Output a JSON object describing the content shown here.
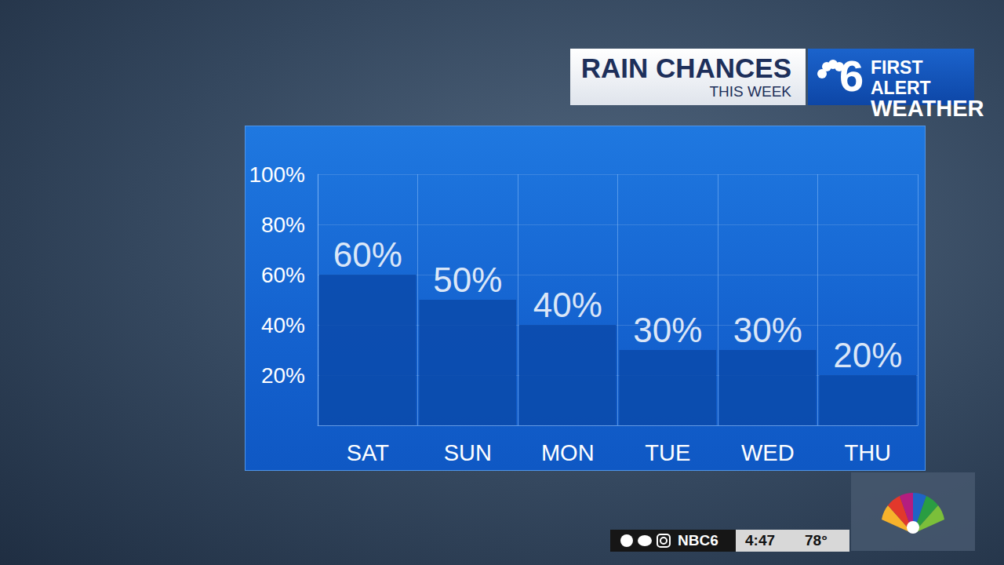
{
  "chart_data": {
    "type": "bar",
    "title": "RAIN CHANCES",
    "subtitle": "THIS WEEK",
    "categories": [
      "SAT",
      "SUN",
      "MON",
      "TUE",
      "WED",
      "THU"
    ],
    "values": [
      60,
      50,
      40,
      30,
      30,
      20
    ],
    "value_labels": [
      "60%",
      "50%",
      "40%",
      "30%",
      "30%",
      "20%"
    ],
    "data_labels": true,
    "color": "#0b4aaa",
    "ylim": [
      0,
      100
    ],
    "yticks": [
      {
        "value": 20,
        "label": "20%"
      },
      {
        "value": 40,
        "label": "40%"
      },
      {
        "value": 60,
        "label": "60%"
      },
      {
        "value": 80,
        "label": "80%"
      },
      {
        "value": 100,
        "label": "100%"
      }
    ],
    "grid": true
  },
  "overlay": {
    "logo_number": "6",
    "brand_line1": "FIRST ALERT",
    "brand_line2": "WEATHER",
    "handle": "NBC6",
    "time": "4:47",
    "temperature": "78°"
  }
}
